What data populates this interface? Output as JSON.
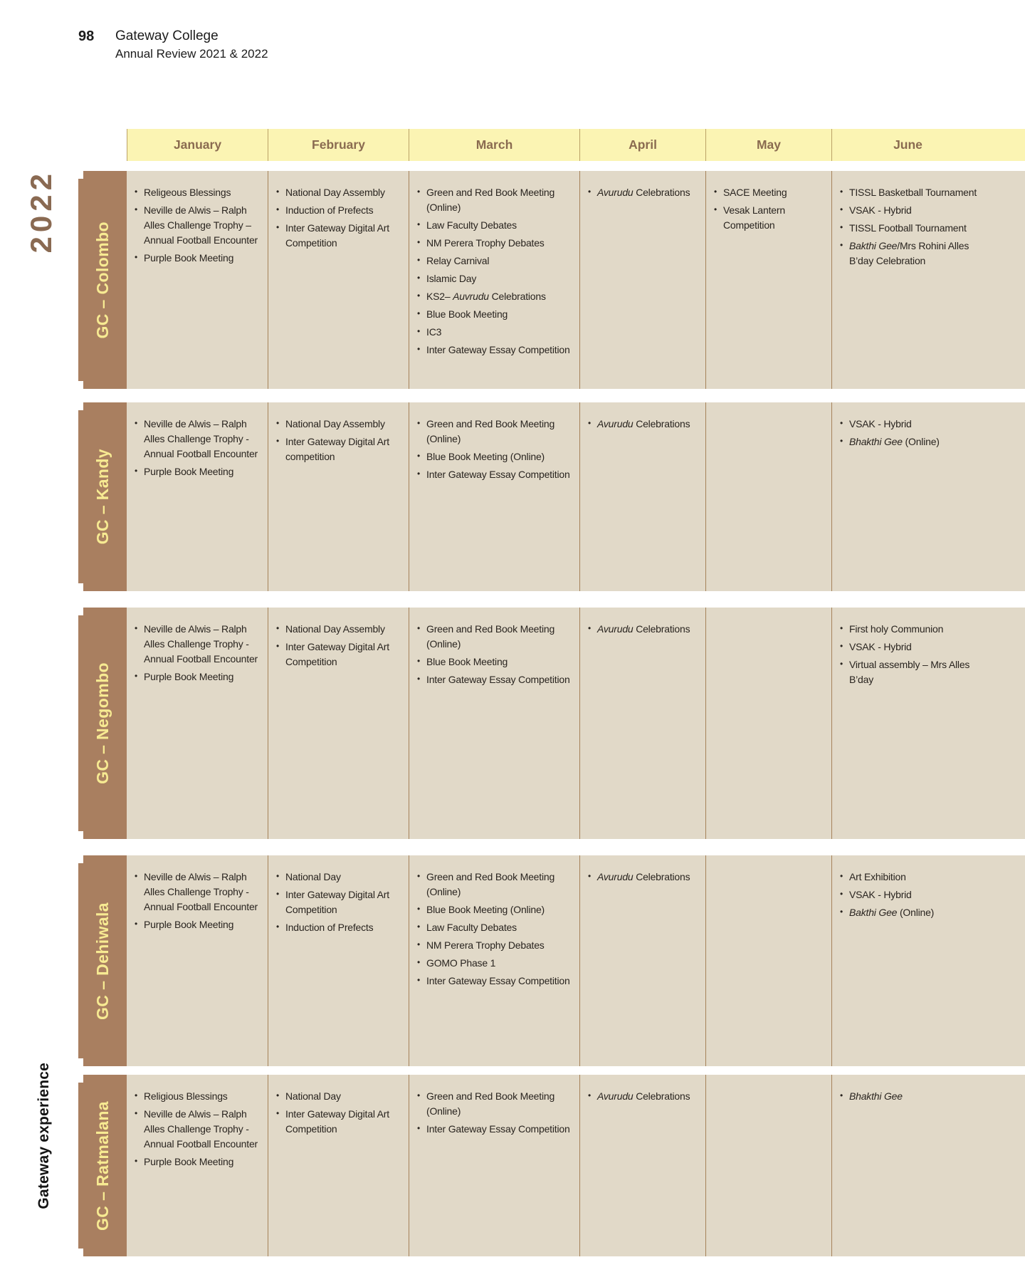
{
  "page": {
    "number": "98",
    "title": "Gateway College",
    "subtitle": "Annual Review 2021 & 2022"
  },
  "sidebar": {
    "year": "2022",
    "caption": "Gateway experience"
  },
  "calendar": {
    "months": [
      "January",
      "February",
      "March",
      "April",
      "May",
      "June"
    ],
    "rows": [
      {
        "label": "GC – Colombo",
        "cells": [
          [
            "Religeous Blessings",
            "Neville de Alwis – Ralph Alles Challenge Trophy – Annual Football Encounter",
            "Purple Book Meeting"
          ],
          [
            "National Day Assembly",
            "Induction of Prefects",
            "Inter Gateway Digital Art Competition"
          ],
          [
            "Green and Red Book Meeting (Online)",
            "Law Faculty Debates",
            "NM Perera Trophy Debates",
            "Relay Carnival",
            "Islamic Day",
            "KS2– *Auvrudu* Celebrations",
            "Blue Book Meeting",
            "IC3",
            "Inter Gateway Essay Competition"
          ],
          [
            "*Avurudu* Celebrations"
          ],
          [
            "SACE Meeting",
            "Vesak Lantern Competition"
          ],
          [
            "TISSL Basketball Tournament",
            "VSAK - Hybrid",
            "TISSL Football Tournament",
            "*Bakthi Gee*/Mrs Rohini Alles B’day Celebration"
          ]
        ]
      },
      {
        "label": "GC – Kandy",
        "cells": [
          [
            "Neville de Alwis – Ralph Alles Challenge Trophy - Annual Football Encounter",
            "Purple Book Meeting"
          ],
          [
            "National Day Assembly",
            "Inter Gateway Digital Art competition"
          ],
          [
            "Green and Red Book Meeting (Online)",
            "Blue Book Meeting (Online)",
            "Inter Gateway Essay Competition"
          ],
          [
            "*Avurudu* Celebrations"
          ],
          [],
          [
            "VSAK - Hybrid",
            "*Bhakthi Gee* (Online)"
          ]
        ]
      },
      {
        "label": "GC – Negombo",
        "cells": [
          [
            "Neville de Alwis – Ralph Alles Challenge Trophy - Annual Football Encounter",
            "Purple Book Meeting"
          ],
          [
            "National Day Assembly",
            "Inter Gateway Digital Art Competition"
          ],
          [
            "Green and Red Book Meeting (Online)",
            "Blue Book Meeting",
            "Inter Gateway Essay Competition"
          ],
          [
            "*Avurudu* Celebrations"
          ],
          [],
          [
            "First holy Communion",
            "VSAK - Hybrid",
            "Virtual assembly – Mrs Alles B’day"
          ]
        ]
      },
      {
        "label": "GC – Dehiwala",
        "cells": [
          [
            "Neville de Alwis – Ralph Alles Challenge Trophy - Annual Football Encounter",
            "Purple Book Meeting"
          ],
          [
            "National Day",
            "Inter Gateway Digital Art Competition",
            "Induction of Prefects"
          ],
          [
            "Green and Red Book Meeting (Online)",
            "Blue Book Meeting (Online)",
            "Law Faculty Debates",
            "NM Perera Trophy Debates",
            "GOMO Phase 1",
            "Inter Gateway Essay Competition"
          ],
          [
            "*Avurudu* Celebrations"
          ],
          [],
          [
            "Art Exhibition",
            "VSAK - Hybrid",
            "*Bakthi Gee* (Online)"
          ]
        ]
      },
      {
        "label": "GC – Ratmalana",
        "cells": [
          [
            "Religious Blessings",
            "Neville de Alwis – Ralph Alles Challenge Trophy - Annual Football Encounter",
            "Purple Book Meeting"
          ],
          [
            "National Day",
            "Inter Gateway Digital Art Competition"
          ],
          [
            "Green and Red Book Meeting (Online)",
            "Inter Gateway Essay Competition"
          ],
          [
            "*Avurudu* Celebrations"
          ],
          [],
          [
            "*Bhakthi Gee*"
          ]
        ]
      }
    ]
  },
  "colors": {
    "header_band": "#fbf4b3",
    "header_text": "#8a6b50",
    "row_label_bg": "#a97f60",
    "row_label_text": "#f7ea92",
    "cell_bg": "#e1d9c8",
    "cell_text": "#29241f",
    "divider": "#a5825a",
    "year_text": "#8a6a52"
  }
}
